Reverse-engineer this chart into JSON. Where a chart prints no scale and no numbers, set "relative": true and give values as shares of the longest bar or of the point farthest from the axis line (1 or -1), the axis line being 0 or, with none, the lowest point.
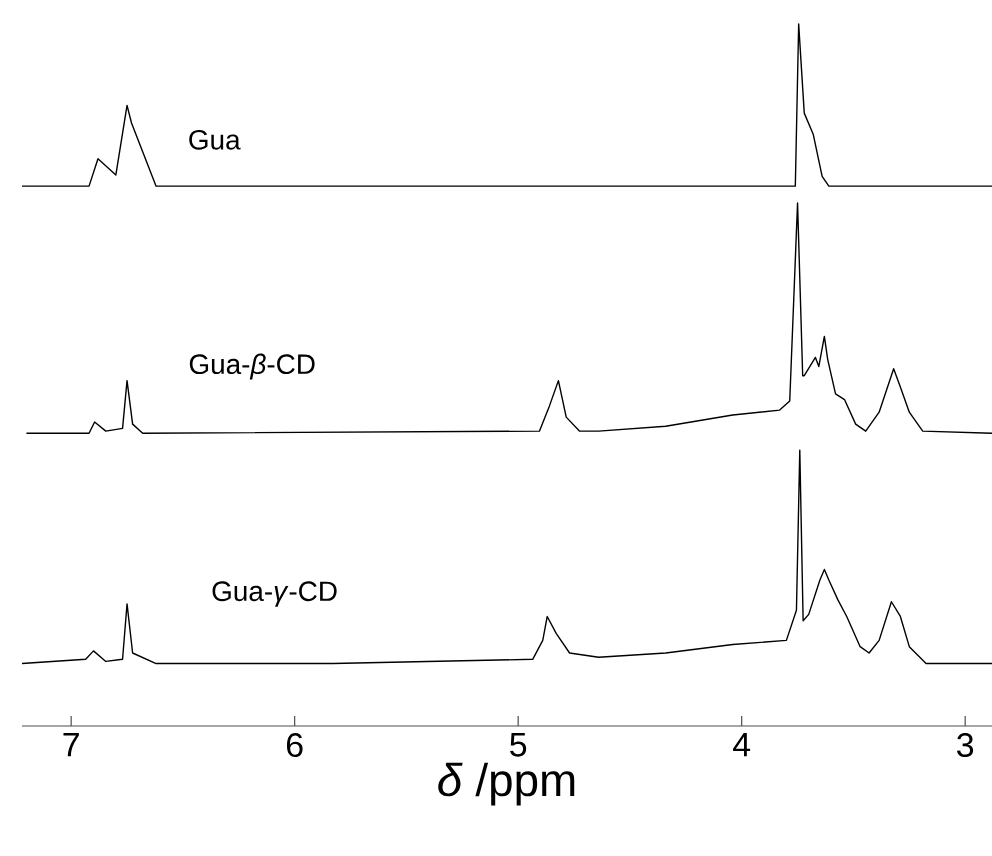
{
  "chart_data": {
    "type": "line",
    "relative": true,
    "xlim": [
      7.22,
      2.88
    ],
    "xticks": [
      7,
      6,
      5,
      4,
      3
    ],
    "xlabel": "*δ* /ppm",
    "series": [
      {
        "name": "Gua",
        "color": "#000000",
        "x": [
          7.22,
          6.92,
          6.88,
          6.8,
          6.75,
          6.73,
          6.62,
          3.76,
          3.745,
          3.72,
          3.68,
          3.64,
          3.61,
          2.88
        ],
        "values": [
          0.769,
          0.769,
          0.808,
          0.785,
          0.884,
          0.859,
          0.769,
          0.769,
          1.0,
          0.873,
          0.843,
          0.783,
          0.769,
          0.769
        ]
      },
      {
        "name": "Gua-*β*-CD",
        "color": "#000000",
        "x": [
          7.2,
          6.92,
          6.895,
          6.845,
          6.77,
          6.75,
          6.725,
          6.68,
          4.905,
          4.86,
          4.82,
          4.785,
          4.725,
          4.64,
          4.34,
          4.04,
          3.83,
          3.785,
          3.75,
          3.727,
          3.72,
          3.67,
          3.655,
          3.63,
          3.615,
          3.58,
          3.54,
          3.49,
          3.445,
          3.385,
          3.32,
          3.29,
          3.25,
          3.19,
          2.88
        ],
        "values": [
          0.417,
          0.417,
          0.433,
          0.42,
          0.424,
          0.492,
          0.43,
          0.417,
          0.42,
          0.456,
          0.492,
          0.44,
          0.42,
          0.42,
          0.427,
          0.443,
          0.45,
          0.463,
          0.745,
          0.499,
          0.499,
          0.525,
          0.512,
          0.555,
          0.522,
          0.473,
          0.465,
          0.43,
          0.42,
          0.447,
          0.509,
          0.483,
          0.447,
          0.42,
          0.417
        ]
      },
      {
        "name": "Gua-*γ*-CD",
        "color": "#000000",
        "x": [
          7.22,
          6.935,
          6.9,
          6.845,
          6.77,
          6.75,
          6.725,
          6.62,
          5.83,
          4.935,
          4.89,
          4.87,
          4.83,
          4.77,
          4.64,
          4.34,
          4.04,
          3.8,
          3.755,
          3.74,
          3.725,
          3.7,
          3.65,
          3.63,
          3.61,
          3.57,
          3.53,
          3.47,
          3.43,
          3.385,
          3.33,
          3.29,
          3.25,
          3.175,
          2.88
        ],
        "values": [
          0.089,
          0.095,
          0.107,
          0.092,
          0.095,
          0.174,
          0.104,
          0.089,
          0.089,
          0.095,
          0.122,
          0.156,
          0.132,
          0.104,
          0.098,
          0.104,
          0.116,
          0.122,
          0.165,
          0.393,
          0.15,
          0.159,
          0.208,
          0.223,
          0.208,
          0.18,
          0.156,
          0.113,
          0.104,
          0.122,
          0.177,
          0.156,
          0.113,
          0.089,
          0.089
        ]
      }
    ]
  }
}
